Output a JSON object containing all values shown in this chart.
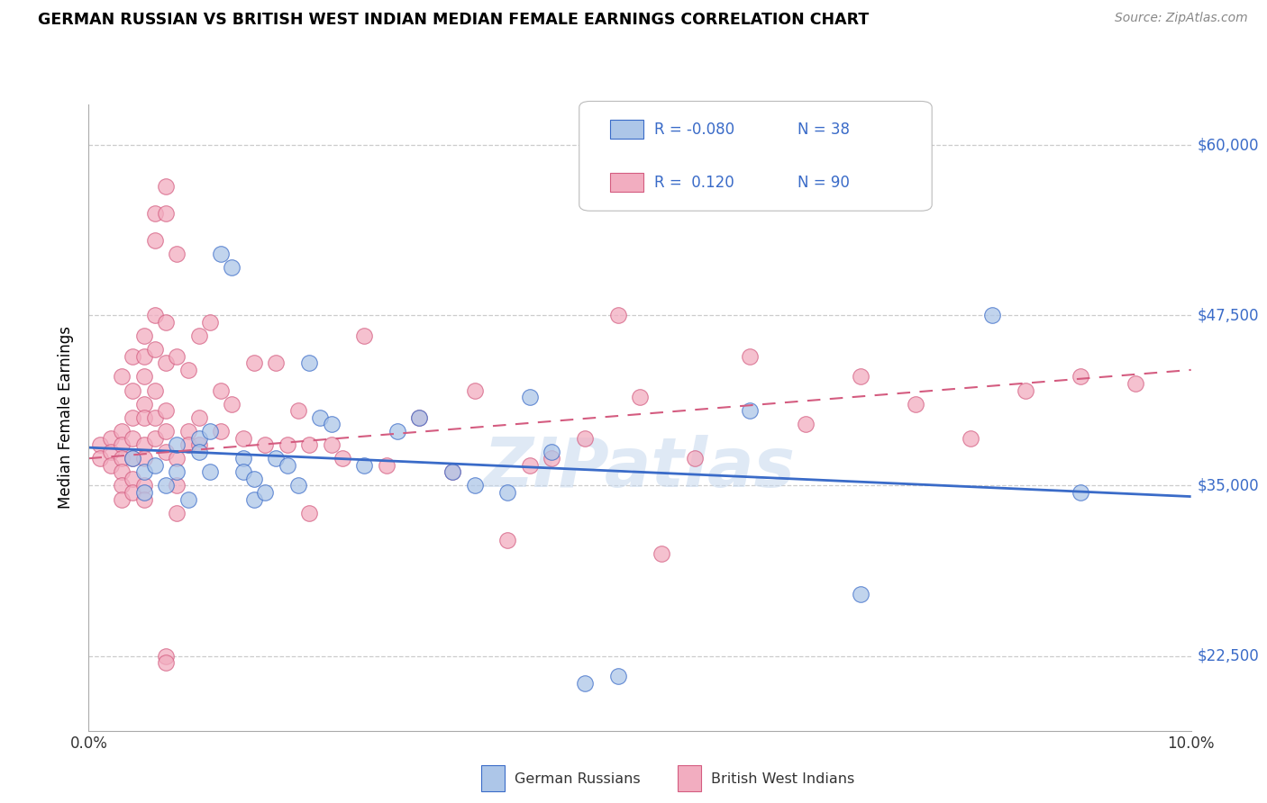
{
  "title": "GERMAN RUSSIAN VS BRITISH WEST INDIAN MEDIAN FEMALE EARNINGS CORRELATION CHART",
  "source": "Source: ZipAtlas.com",
  "ylabel": "Median Female Earnings",
  "ytick_labels": [
    "$22,500",
    "$35,000",
    "$47,500",
    "$60,000"
  ],
  "ytick_values": [
    22500,
    35000,
    47500,
    60000
  ],
  "xmin": 0.0,
  "xmax": 0.1,
  "ymin": 17000,
  "ymax": 63000,
  "blue_color": "#adc6e8",
  "pink_color": "#f2adc0",
  "blue_line_color": "#3a6bc8",
  "pink_line_color": "#d45c80",
  "watermark": "ZIPatlas",
  "blue_scatter": [
    [
      0.004,
      37000
    ],
    [
      0.005,
      34500
    ],
    [
      0.005,
      36000
    ],
    [
      0.006,
      36500
    ],
    [
      0.007,
      35000
    ],
    [
      0.008,
      38000
    ],
    [
      0.008,
      36000
    ],
    [
      0.009,
      34000
    ],
    [
      0.01,
      38500
    ],
    [
      0.01,
      37500
    ],
    [
      0.011,
      36000
    ],
    [
      0.011,
      39000
    ],
    [
      0.012,
      52000
    ],
    [
      0.013,
      51000
    ],
    [
      0.014,
      37000
    ],
    [
      0.014,
      36000
    ],
    [
      0.015,
      35500
    ],
    [
      0.015,
      34000
    ],
    [
      0.016,
      34500
    ],
    [
      0.017,
      37000
    ],
    [
      0.018,
      36500
    ],
    [
      0.019,
      35000
    ],
    [
      0.02,
      44000
    ],
    [
      0.021,
      40000
    ],
    [
      0.022,
      39500
    ],
    [
      0.025,
      36500
    ],
    [
      0.028,
      39000
    ],
    [
      0.03,
      40000
    ],
    [
      0.033,
      36000
    ],
    [
      0.035,
      35000
    ],
    [
      0.038,
      34500
    ],
    [
      0.04,
      41500
    ],
    [
      0.042,
      37500
    ],
    [
      0.045,
      20500
    ],
    [
      0.048,
      21000
    ],
    [
      0.06,
      40500
    ],
    [
      0.07,
      27000
    ],
    [
      0.082,
      47500
    ],
    [
      0.09,
      34500
    ]
  ],
  "pink_scatter": [
    [
      0.001,
      38000
    ],
    [
      0.001,
      37000
    ],
    [
      0.002,
      38500
    ],
    [
      0.002,
      37500
    ],
    [
      0.002,
      36500
    ],
    [
      0.003,
      43000
    ],
    [
      0.003,
      39000
    ],
    [
      0.003,
      38000
    ],
    [
      0.003,
      37000
    ],
    [
      0.003,
      36000
    ],
    [
      0.003,
      35000
    ],
    [
      0.003,
      34000
    ],
    [
      0.004,
      44500
    ],
    [
      0.004,
      42000
    ],
    [
      0.004,
      40000
    ],
    [
      0.004,
      38500
    ],
    [
      0.004,
      37000
    ],
    [
      0.004,
      35500
    ],
    [
      0.004,
      34500
    ],
    [
      0.005,
      46000
    ],
    [
      0.005,
      44500
    ],
    [
      0.005,
      43000
    ],
    [
      0.005,
      41000
    ],
    [
      0.005,
      40000
    ],
    [
      0.005,
      38000
    ],
    [
      0.005,
      37000
    ],
    [
      0.005,
      35000
    ],
    [
      0.005,
      34000
    ],
    [
      0.006,
      55000
    ],
    [
      0.006,
      53000
    ],
    [
      0.006,
      47500
    ],
    [
      0.006,
      45000
    ],
    [
      0.006,
      42000
    ],
    [
      0.006,
      40000
    ],
    [
      0.006,
      38500
    ],
    [
      0.007,
      57000
    ],
    [
      0.007,
      55000
    ],
    [
      0.007,
      47000
    ],
    [
      0.007,
      44000
    ],
    [
      0.007,
      40500
    ],
    [
      0.007,
      39000
    ],
    [
      0.007,
      37500
    ],
    [
      0.007,
      22500
    ],
    [
      0.007,
      22000
    ],
    [
      0.008,
      52000
    ],
    [
      0.008,
      44500
    ],
    [
      0.008,
      37000
    ],
    [
      0.008,
      35000
    ],
    [
      0.008,
      33000
    ],
    [
      0.009,
      43500
    ],
    [
      0.009,
      39000
    ],
    [
      0.009,
      38000
    ],
    [
      0.01,
      46000
    ],
    [
      0.01,
      40000
    ],
    [
      0.01,
      38000
    ],
    [
      0.011,
      47000
    ],
    [
      0.012,
      42000
    ],
    [
      0.012,
      39000
    ],
    [
      0.013,
      41000
    ],
    [
      0.014,
      38500
    ],
    [
      0.015,
      44000
    ],
    [
      0.016,
      38000
    ],
    [
      0.017,
      44000
    ],
    [
      0.018,
      38000
    ],
    [
      0.019,
      40500
    ],
    [
      0.02,
      38000
    ],
    [
      0.02,
      33000
    ],
    [
      0.022,
      38000
    ],
    [
      0.023,
      37000
    ],
    [
      0.025,
      46000
    ],
    [
      0.027,
      36500
    ],
    [
      0.03,
      40000
    ],
    [
      0.033,
      36000
    ],
    [
      0.035,
      42000
    ],
    [
      0.038,
      31000
    ],
    [
      0.04,
      36500
    ],
    [
      0.042,
      37000
    ],
    [
      0.045,
      38500
    ],
    [
      0.048,
      47500
    ],
    [
      0.05,
      41500
    ],
    [
      0.052,
      30000
    ],
    [
      0.055,
      37000
    ],
    [
      0.06,
      44500
    ],
    [
      0.065,
      39500
    ],
    [
      0.07,
      43000
    ],
    [
      0.075,
      41000
    ],
    [
      0.08,
      38500
    ],
    [
      0.085,
      42000
    ],
    [
      0.09,
      43000
    ],
    [
      0.095,
      42500
    ]
  ],
  "blue_trendline_x": [
    0.0,
    0.1
  ],
  "blue_trendline_y": [
    37800,
    34200
  ],
  "pink_trendline_x": [
    0.0,
    0.1
  ],
  "pink_trendline_y": [
    37000,
    43500
  ]
}
